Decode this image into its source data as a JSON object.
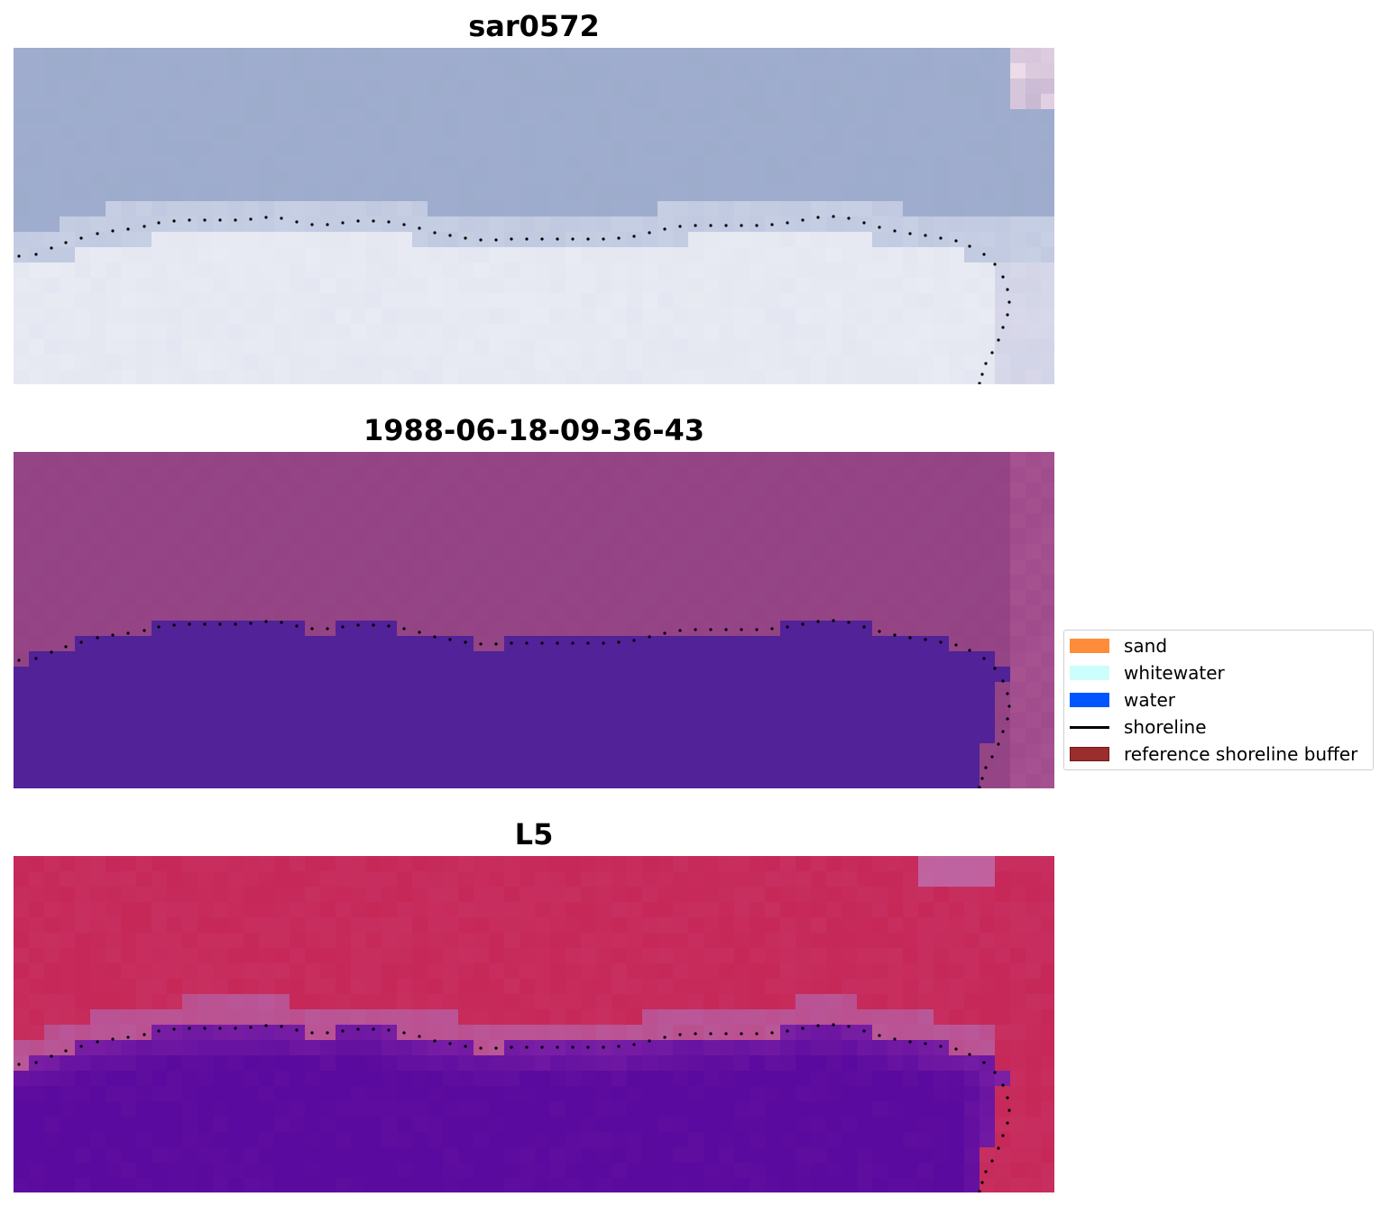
{
  "panels": [
    {
      "id": "rgb",
      "title": "sar0572"
    },
    {
      "id": "classified",
      "title": "1988-06-18-09-36-43"
    },
    {
      "id": "mndwi",
      "title": "L5"
    }
  ],
  "legend": {
    "items": [
      {
        "label": "sand",
        "color": "#ff8c3a",
        "kind": "patch"
      },
      {
        "label": "whitewater",
        "color": "#ccfffb",
        "kind": "patch"
      },
      {
        "label": "water",
        "color": "#0055ff",
        "kind": "patch"
      },
      {
        "label": "shoreline",
        "color": "#000000",
        "kind": "line"
      },
      {
        "label": "reference shoreline buffer",
        "color": "#9b2d2d",
        "kind": "patch"
      }
    ]
  },
  "colors": {
    "rgb_water": "#9aaac9",
    "rgb_land": "#eef0f6",
    "class_background": "#954585",
    "class_water": "#512298",
    "mndwi_land": "#c42050",
    "mndwi_water": "#5a0a9e",
    "shoreline": "#000000"
  }
}
